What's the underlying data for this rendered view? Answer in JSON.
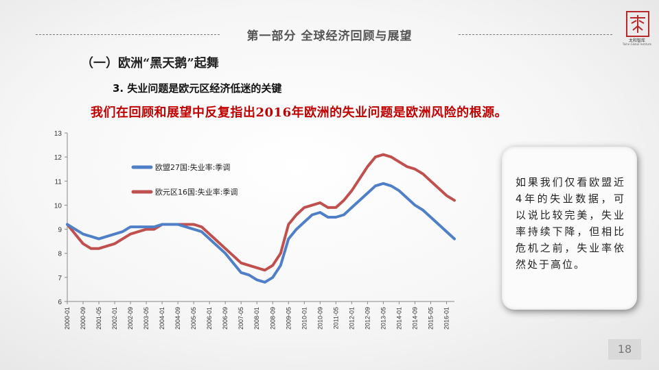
{
  "header": {
    "section_title": "第一部分  全球经济回顾与展望",
    "logo_cn": "太和智库",
    "logo_en": "Taihe Global Institute"
  },
  "slide": {
    "subtitle": "（一）欧洲“黑天鹅”起舞",
    "heading": "3. 失业问题是欧元区经济低迷的关键",
    "highlight": "我们在回顾和展望中反复指出2016年欧洲的失业问题是欧洲风险的根源。",
    "note": "如果我们仅看欧盟近4年的失业数据，可以说比较完美，失业率持续下降，但相比危机之前，失业率依然处于高位。",
    "page_number": "18"
  },
  "colors": {
    "eu27": "#4f7fc6",
    "ea16": "#c0504d",
    "accent": "#c00000"
  },
  "chart_data": {
    "type": "line",
    "ylim": [
      6,
      13
    ],
    "yticks": [
      6,
      7,
      8,
      9,
      10,
      11,
      12,
      13
    ],
    "grid": false,
    "legend": "top-left",
    "xticks": [
      "2000-01",
      "2000-09",
      "2001-05",
      "2002-01",
      "2002-09",
      "2003-05",
      "2004-01",
      "2004-09",
      "2005-05",
      "2006-01",
      "2006-09",
      "2007-05",
      "2008-01",
      "2008-09",
      "2009-05",
      "2010-01",
      "2010-09",
      "2011-05",
      "2012-01",
      "2012-09",
      "2013-05",
      "2014-01",
      "2014-09",
      "2015-05",
      "2016-01"
    ],
    "x": [
      "2000-01",
      "2000-05",
      "2000-09",
      "2001-01",
      "2001-05",
      "2001-09",
      "2002-01",
      "2002-05",
      "2002-09",
      "2003-01",
      "2003-05",
      "2003-09",
      "2004-01",
      "2004-05",
      "2004-09",
      "2005-01",
      "2005-05",
      "2005-09",
      "2006-01",
      "2006-05",
      "2006-09",
      "2007-01",
      "2007-05",
      "2007-09",
      "2008-01",
      "2008-05",
      "2008-09",
      "2009-01",
      "2009-05",
      "2009-09",
      "2010-01",
      "2010-05",
      "2010-09",
      "2011-01",
      "2011-05",
      "2011-09",
      "2012-01",
      "2012-05",
      "2012-09",
      "2013-01",
      "2013-05",
      "2013-09",
      "2014-01",
      "2014-05",
      "2014-09",
      "2015-01",
      "2015-05",
      "2015-09",
      "2016-01",
      "2016-05"
    ],
    "series": [
      {
        "name": "欧盟27国:失业率:季调",
        "values": [
          9.2,
          9.0,
          8.8,
          8.7,
          8.6,
          8.7,
          8.8,
          8.9,
          9.1,
          9.1,
          9.1,
          9.1,
          9.2,
          9.2,
          9.2,
          9.1,
          9.0,
          8.9,
          8.6,
          8.3,
          8.0,
          7.6,
          7.2,
          7.1,
          6.9,
          6.8,
          7.0,
          7.5,
          8.6,
          9.0,
          9.3,
          9.6,
          9.7,
          9.5,
          9.5,
          9.6,
          9.9,
          10.2,
          10.5,
          10.8,
          10.9,
          10.8,
          10.6,
          10.3,
          10.0,
          9.8,
          9.5,
          9.2,
          8.9,
          8.6
        ]
      },
      {
        "name": "欧元区16国:失业率:季调",
        "values": [
          9.2,
          8.8,
          8.4,
          8.2,
          8.2,
          8.3,
          8.4,
          8.6,
          8.8,
          8.9,
          9.0,
          9.0,
          9.2,
          9.2,
          9.2,
          9.2,
          9.2,
          9.1,
          8.8,
          8.5,
          8.2,
          7.9,
          7.6,
          7.5,
          7.4,
          7.3,
          7.5,
          8.0,
          9.2,
          9.6,
          9.9,
          10.0,
          10.1,
          9.9,
          9.9,
          10.2,
          10.6,
          11.1,
          11.6,
          12.0,
          12.1,
          12.0,
          11.8,
          11.6,
          11.5,
          11.3,
          11.0,
          10.7,
          10.4,
          10.2
        ]
      }
    ]
  }
}
